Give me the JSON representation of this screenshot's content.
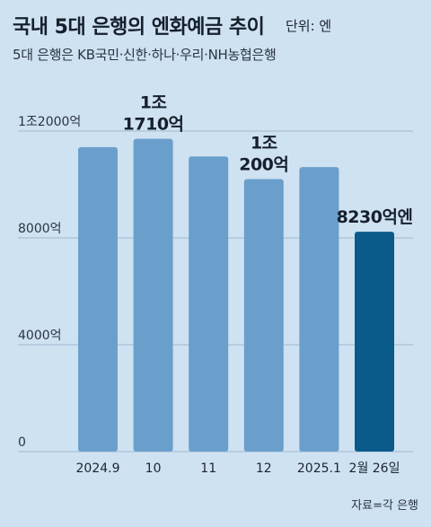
{
  "title": "국내 5대 은행의 엔화예금 추이",
  "unit": "단위: 엔",
  "subtitle": "5대 은행은 KB국민·신한·하나·우리·NH농협은행",
  "source": "자료=각 은행",
  "colors": {
    "bar": "#6a9fcc",
    "highlight": "#0a5a8a",
    "grid": "#9fb8cf",
    "background": "#cfe2f2"
  },
  "chart_data": {
    "type": "bar",
    "categories": [
      "2024.9",
      "10",
      "11",
      "12",
      "2025.1",
      "2월 26일"
    ],
    "values": [
      11400,
      11710,
      11050,
      10200,
      10650,
      8230
    ],
    "ylim": [
      0,
      12000
    ],
    "yticks": [
      {
        "value": 0,
        "label": "0"
      },
      {
        "value": 4000,
        "label": "4000억"
      },
      {
        "value": 8000,
        "label": "8000억"
      },
      {
        "value": 12000,
        "label": "1조2000억"
      }
    ],
    "highlight_index": 5,
    "annotations": [
      {
        "index": 1,
        "lines": [
          "1조",
          "1710억"
        ]
      },
      {
        "index": 3,
        "lines": [
          "1조",
          "200억"
        ]
      },
      {
        "index": 5,
        "lines": [
          "8230억엔"
        ]
      }
    ],
    "grid": true
  }
}
